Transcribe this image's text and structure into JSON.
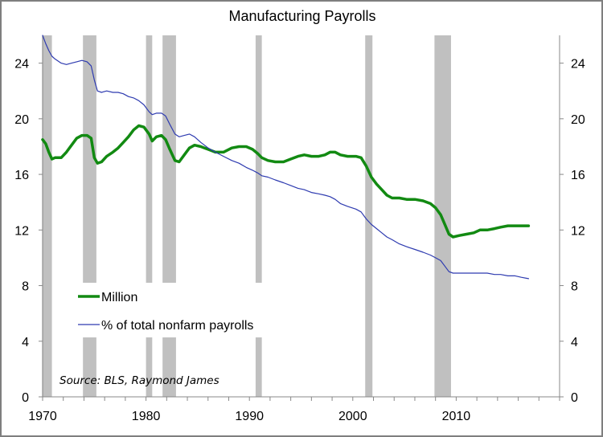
{
  "chart_data": {
    "type": "line",
    "title": "Manufacturing Payrolls",
    "source": "Source: BLS, Raymond James",
    "xlabel": "",
    "ylabel": "",
    "xlim": [
      1970,
      2020
    ],
    "ylim": [
      0,
      26
    ],
    "x_ticks": [
      "1970",
      "1980",
      "1990",
      "2000",
      "2010"
    ],
    "y_ticks_left": [
      "0",
      "4",
      "8",
      "12",
      "16",
      "20",
      "24"
    ],
    "y_ticks_right": [
      "0",
      "4",
      "8",
      "12",
      "16",
      "20",
      "24"
    ],
    "legend_position": "lower-left",
    "grid": false,
    "recessions": [
      [
        1969.95,
        1970.9
      ],
      [
        1973.9,
        1975.2
      ],
      [
        1980.0,
        1980.6
      ],
      [
        1981.6,
        1982.9
      ],
      [
        1990.6,
        1991.2
      ],
      [
        2001.2,
        2001.9
      ],
      [
        2007.9,
        2009.5
      ]
    ],
    "recession_color": "#c0c0c0",
    "series": [
      {
        "name": "Million",
        "color": "#128a12",
        "points": [
          [
            1970.0,
            18.5
          ],
          [
            1970.3,
            18.2
          ],
          [
            1970.6,
            17.6
          ],
          [
            1970.9,
            17.1
          ],
          [
            1971.2,
            17.2
          ],
          [
            1971.8,
            17.2
          ],
          [
            1972.3,
            17.6
          ],
          [
            1972.8,
            18.1
          ],
          [
            1973.3,
            18.6
          ],
          [
            1973.8,
            18.8
          ],
          [
            1974.3,
            18.8
          ],
          [
            1974.7,
            18.6
          ],
          [
            1975.0,
            17.2
          ],
          [
            1975.3,
            16.8
          ],
          [
            1975.7,
            16.9
          ],
          [
            1976.2,
            17.3
          ],
          [
            1976.8,
            17.6
          ],
          [
            1977.3,
            17.9
          ],
          [
            1977.8,
            18.3
          ],
          [
            1978.3,
            18.7
          ],
          [
            1978.8,
            19.2
          ],
          [
            1979.3,
            19.5
          ],
          [
            1979.8,
            19.4
          ],
          [
            1980.3,
            18.9
          ],
          [
            1980.6,
            18.4
          ],
          [
            1981.0,
            18.7
          ],
          [
            1981.5,
            18.8
          ],
          [
            1981.9,
            18.5
          ],
          [
            1982.3,
            17.8
          ],
          [
            1982.8,
            17.0
          ],
          [
            1983.2,
            16.9
          ],
          [
            1983.7,
            17.4
          ],
          [
            1984.2,
            17.9
          ],
          [
            1984.7,
            18.1
          ],
          [
            1985.3,
            18.0
          ],
          [
            1986.0,
            17.8
          ],
          [
            1986.7,
            17.6
          ],
          [
            1987.5,
            17.6
          ],
          [
            1988.3,
            17.9
          ],
          [
            1989.0,
            18.0
          ],
          [
            1989.7,
            18.0
          ],
          [
            1990.3,
            17.8
          ],
          [
            1990.8,
            17.5
          ],
          [
            1991.2,
            17.2
          ],
          [
            1991.8,
            17.0
          ],
          [
            1992.5,
            16.9
          ],
          [
            1993.3,
            16.9
          ],
          [
            1994.0,
            17.1
          ],
          [
            1994.7,
            17.3
          ],
          [
            1995.3,
            17.4
          ],
          [
            1996.0,
            17.3
          ],
          [
            1996.7,
            17.3
          ],
          [
            1997.3,
            17.4
          ],
          [
            1997.8,
            17.6
          ],
          [
            1998.3,
            17.6
          ],
          [
            1998.8,
            17.4
          ],
          [
            1999.5,
            17.3
          ],
          [
            2000.3,
            17.3
          ],
          [
            2000.8,
            17.2
          ],
          [
            2001.3,
            16.6
          ],
          [
            2001.8,
            15.8
          ],
          [
            2002.3,
            15.3
          ],
          [
            2002.8,
            14.9
          ],
          [
            2003.3,
            14.5
          ],
          [
            2003.8,
            14.3
          ],
          [
            2004.5,
            14.3
          ],
          [
            2005.2,
            14.2
          ],
          [
            2006.0,
            14.2
          ],
          [
            2006.8,
            14.1
          ],
          [
            2007.5,
            13.9
          ],
          [
            2008.0,
            13.6
          ],
          [
            2008.5,
            13.1
          ],
          [
            2008.9,
            12.4
          ],
          [
            2009.3,
            11.7
          ],
          [
            2009.7,
            11.5
          ],
          [
            2010.3,
            11.6
          ],
          [
            2011.0,
            11.7
          ],
          [
            2011.7,
            11.8
          ],
          [
            2012.3,
            12.0
          ],
          [
            2013.0,
            12.0
          ],
          [
            2013.7,
            12.1
          ],
          [
            2014.3,
            12.2
          ],
          [
            2015.0,
            12.3
          ],
          [
            2015.7,
            12.3
          ],
          [
            2016.3,
            12.3
          ],
          [
            2017.0,
            12.3
          ]
        ]
      },
      {
        "name": "% of total nonfarm payrolls",
        "color": "#2e3bb0",
        "points": [
          [
            1970.0,
            26.0
          ],
          [
            1970.3,
            25.4
          ],
          [
            1970.6,
            24.9
          ],
          [
            1970.9,
            24.5
          ],
          [
            1971.2,
            24.3
          ],
          [
            1971.8,
            24.0
          ],
          [
            1972.3,
            23.9
          ],
          [
            1972.8,
            24.0
          ],
          [
            1973.3,
            24.1
          ],
          [
            1973.8,
            24.2
          ],
          [
            1974.3,
            24.1
          ],
          [
            1974.7,
            23.8
          ],
          [
            1975.0,
            22.8
          ],
          [
            1975.3,
            22.0
          ],
          [
            1975.7,
            21.9
          ],
          [
            1976.2,
            22.0
          ],
          [
            1976.8,
            21.9
          ],
          [
            1977.3,
            21.9
          ],
          [
            1977.8,
            21.8
          ],
          [
            1978.3,
            21.6
          ],
          [
            1978.8,
            21.5
          ],
          [
            1979.3,
            21.3
          ],
          [
            1979.8,
            21.0
          ],
          [
            1980.3,
            20.5
          ],
          [
            1980.6,
            20.3
          ],
          [
            1981.0,
            20.4
          ],
          [
            1981.5,
            20.4
          ],
          [
            1981.9,
            20.2
          ],
          [
            1982.3,
            19.6
          ],
          [
            1982.8,
            18.9
          ],
          [
            1983.2,
            18.7
          ],
          [
            1983.7,
            18.8
          ],
          [
            1984.2,
            18.9
          ],
          [
            1984.7,
            18.7
          ],
          [
            1985.3,
            18.3
          ],
          [
            1986.0,
            17.9
          ],
          [
            1986.7,
            17.6
          ],
          [
            1987.5,
            17.3
          ],
          [
            1988.3,
            17.0
          ],
          [
            1989.0,
            16.8
          ],
          [
            1989.7,
            16.5
          ],
          [
            1990.3,
            16.3
          ],
          [
            1990.8,
            16.1
          ],
          [
            1991.2,
            15.9
          ],
          [
            1991.8,
            15.8
          ],
          [
            1992.5,
            15.6
          ],
          [
            1993.3,
            15.4
          ],
          [
            1994.0,
            15.2
          ],
          [
            1994.7,
            15.0
          ],
          [
            1995.3,
            14.9
          ],
          [
            1996.0,
            14.7
          ],
          [
            1996.7,
            14.6
          ],
          [
            1997.3,
            14.5
          ],
          [
            1997.8,
            14.4
          ],
          [
            1998.3,
            14.2
          ],
          [
            1998.8,
            13.9
          ],
          [
            1999.5,
            13.7
          ],
          [
            2000.3,
            13.5
          ],
          [
            2000.8,
            13.3
          ],
          [
            2001.3,
            12.8
          ],
          [
            2001.8,
            12.4
          ],
          [
            2002.3,
            12.1
          ],
          [
            2002.8,
            11.8
          ],
          [
            2003.3,
            11.5
          ],
          [
            2003.8,
            11.3
          ],
          [
            2004.5,
            11.0
          ],
          [
            2005.2,
            10.8
          ],
          [
            2006.0,
            10.6
          ],
          [
            2006.8,
            10.4
          ],
          [
            2007.5,
            10.2
          ],
          [
            2008.0,
            10.0
          ],
          [
            2008.5,
            9.8
          ],
          [
            2008.9,
            9.4
          ],
          [
            2009.3,
            9.0
          ],
          [
            2009.7,
            8.9
          ],
          [
            2010.3,
            8.9
          ],
          [
            2011.0,
            8.9
          ],
          [
            2011.7,
            8.9
          ],
          [
            2012.3,
            8.9
          ],
          [
            2013.0,
            8.9
          ],
          [
            2013.7,
            8.8
          ],
          [
            2014.3,
            8.8
          ],
          [
            2015.0,
            8.7
          ],
          [
            2015.7,
            8.7
          ],
          [
            2016.3,
            8.6
          ],
          [
            2017.0,
            8.5
          ]
        ]
      }
    ]
  }
}
